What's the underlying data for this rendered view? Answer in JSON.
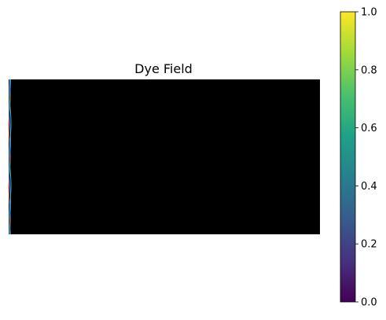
{
  "chart_data": [
    {
      "type": "heatmap",
      "title": "Dye Field",
      "description_of_content": "",
      "colors": {
        "background": "#000000",
        "edge_streaks": [
          "#ff3b3b",
          "#3b6bff",
          "#22d3c5"
        ]
      }
    },
    {
      "type": "colorbar",
      "colormap": "viridis",
      "colormap_stops": [
        "#440154",
        "#46327e",
        "#365c8d",
        "#277f8e",
        "#1fa187",
        "#4ac16d",
        "#a0da39",
        "#fde725"
      ],
      "ylim": [
        0,
        1
      ],
      "ticks": [
        "0.0",
        "0.2",
        "0.4",
        "0.6",
        "0.8",
        "1.0"
      ]
    }
  ]
}
